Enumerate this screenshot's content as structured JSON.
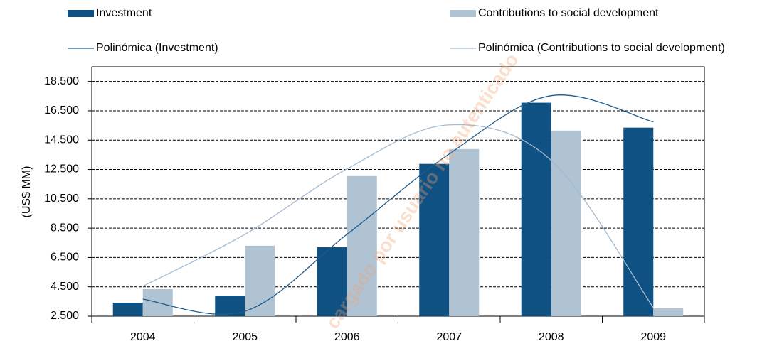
{
  "chart_data": {
    "type": "bar",
    "y_label": "(US$ MM)",
    "watermark": "cargado por usuario no autenticado",
    "categories": [
      "2004",
      "2005",
      "2006",
      "2007",
      "2008",
      "2009"
    ],
    "series": [
      {
        "name": "Investment",
        "color": "#0f5182",
        "values": [
          3420,
          3900,
          7200,
          12880,
          17050,
          15350
        ]
      },
      {
        "name": "Contributions to social development",
        "color": "#b0c3d3",
        "values": [
          4340,
          7300,
          12050,
          13890,
          15150,
          3030
        ]
      },
      {
        "name": "Polinómica (Investment)",
        "type": "line",
        "color": "#1f5c8c",
        "values": [
          3660,
          2840,
          8080,
          13550,
          17530,
          15740
        ]
      },
      {
        "name": "Polinómica (Contributions to social development)",
        "type": "line",
        "color": "#a3bbd1",
        "values": [
          4540,
          8080,
          12540,
          15540,
          13120,
          3080
        ]
      }
    ],
    "ylim": [
      2500,
      19500
    ],
    "yticks": [
      {
        "value": 2500,
        "label": "2.500"
      },
      {
        "value": 4500,
        "label": "4.500"
      },
      {
        "value": 6500,
        "label": "6.500"
      },
      {
        "value": 8500,
        "label": "8.500"
      },
      {
        "value": 10500,
        "label": "10.500"
      },
      {
        "value": 12500,
        "label": "12.500"
      },
      {
        "value": 14500,
        "label": "14.500"
      },
      {
        "value": 16500,
        "label": "16.500"
      },
      {
        "value": 18500,
        "label": "18.500"
      }
    ],
    "grid": true
  }
}
